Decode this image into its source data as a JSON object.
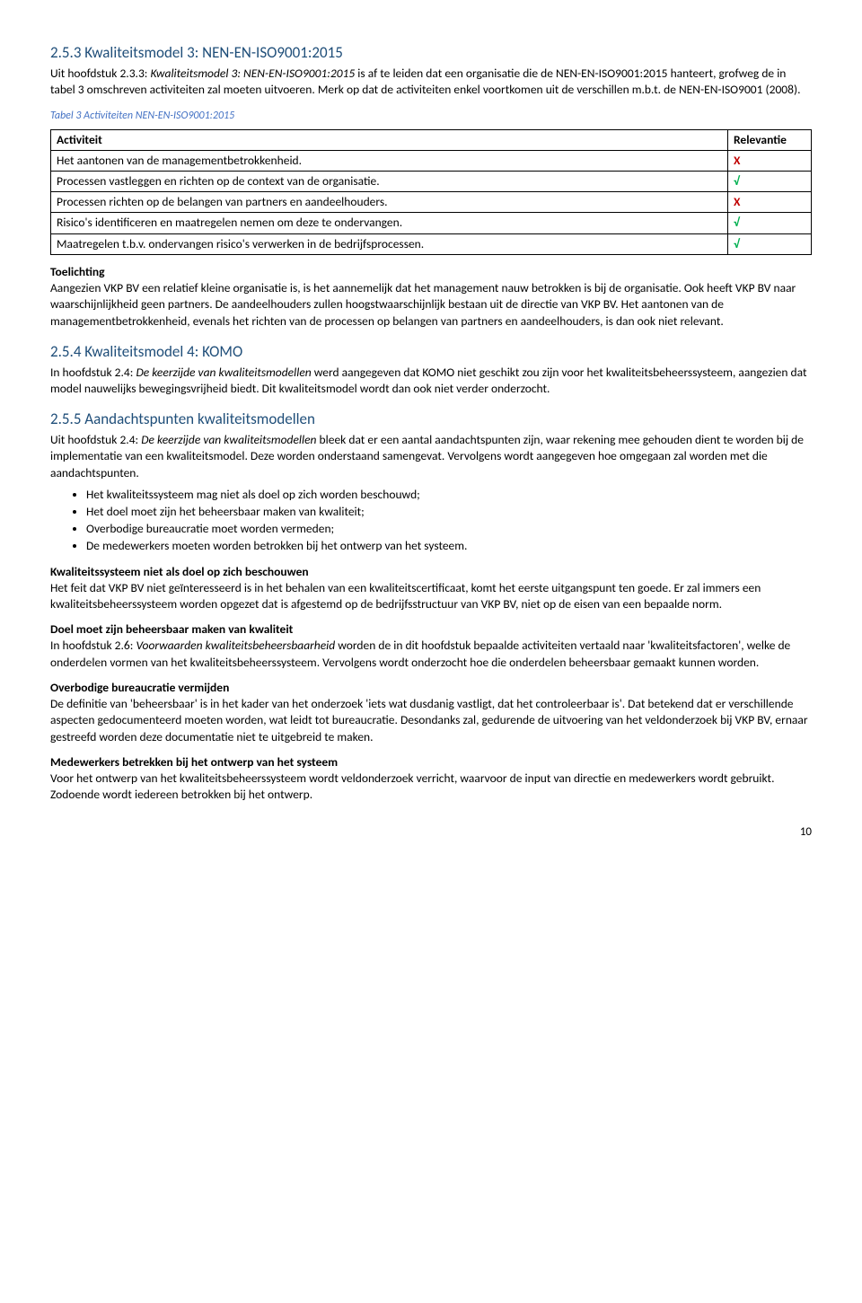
{
  "heading_253": "2.5.3 Kwaliteitsmodel 3: NEN-EN-ISO9001:2015",
  "intro_253_a": "Uit hoofdstuk 2.3.3: ",
  "intro_253_italic": "Kwaliteitsmodel 3: NEN-EN-ISO9001:2015",
  "intro_253_b": " is af te leiden dat een organisatie die de NEN-EN-ISO9001:2015 hanteert, grofweg de in tabel 3 omschreven activiteiten zal moeten uitvoeren. Merk op dat de activiteiten enkel voortkomen uit de verschillen m.b.t. de NEN-EN-ISO9001 (2008).",
  "table_caption": "Tabel 3 Activiteiten NEN-EN-ISO9001:2015",
  "col_activity": "Activiteit",
  "col_relevance": "Relevantie",
  "rows": [
    {
      "act": "Het aantonen van de managementbetrokkenheid.",
      "mark": "X",
      "cls": "x"
    },
    {
      "act": "Processen vastleggen en richten op de context van de organisatie.",
      "mark": "√",
      "cls": "v"
    },
    {
      "act": "Processen richten op de belangen van partners en aandeelhouders.",
      "mark": "X",
      "cls": "x"
    },
    {
      "act": "Risico's identificeren en maatregelen nemen om deze te ondervangen.",
      "mark": "√",
      "cls": "v"
    },
    {
      "act": "Maatregelen t.b.v. ondervangen risico's verwerken in de bedrijfsprocessen.",
      "mark": "√",
      "cls": "v"
    }
  ],
  "toelichting_title": "Toelichting",
  "toelichting_body": "Aangezien VKP BV een relatief kleine organisatie is, is het aannemelijk dat het management nauw betrokken is bij de organisatie. Ook heeft VKP BV naar waarschijnlijkheid geen partners. De aandeelhouders zullen hoogstwaarschijnlijk bestaan uit de directie van VKP BV. Het aantonen van de managementbetrokkenheid, evenals het richten van de processen op belangen van partners en aandeelhouders, is dan ook niet relevant.",
  "heading_254": "2.5.4 Kwaliteitsmodel 4: KOMO",
  "p254_a": "In hoofdstuk 2.4: ",
  "p254_italic": "De keerzijde van kwaliteitsmodellen",
  "p254_b": " werd aangegeven dat KOMO niet geschikt zou zijn voor het kwaliteitsbeheerssysteem, aangezien dat model nauwelijks bewegingsvrijheid biedt. Dit kwaliteitsmodel wordt dan ook niet verder onderzocht.",
  "heading_255": "2.5.5 Aandachtspunten kwaliteitsmodellen",
  "p255_a": "Uit hoofdstuk 2.4: ",
  "p255_italic": "De keerzijde van kwaliteitsmodellen",
  "p255_b": " bleek dat er een aantal aandachtspunten zijn, waar rekening mee gehouden dient te worden bij de implementatie van een kwaliteitsmodel. Deze worden onderstaand samengevat. Vervolgens wordt aangegeven hoe omgegaan zal worden met die aandachtspunten.",
  "bullets": [
    "Het kwaliteitssysteem mag niet als doel op zich worden beschouwd;",
    "Het doel moet zijn het beheersbaar maken van kwaliteit;",
    "Overbodige bureaucratie moet worden vermeden;",
    "De medewerkers moeten worden betrokken bij het ontwerp van het systeem."
  ],
  "sec1_title": "Kwaliteitssysteem niet als doel op zich beschouwen",
  "sec1_body": "Het feit dat VKP BV niet geïnteresseerd is in het behalen van een kwaliteitscertificaat, komt het eerste uitgangspunt ten goede. Er zal immers een kwaliteitsbeheerssysteem worden opgezet dat is afgestemd op de bedrijfsstructuur van VKP BV, niet op de eisen van een bepaalde norm.",
  "sec2_title": "Doel moet zijn beheersbaar maken van kwaliteit",
  "sec2_a": "In hoofdstuk 2.6: ",
  "sec2_italic": "Voorwaarden kwaliteitsbeheersbaarheid",
  "sec2_b": " worden de in dit hoofdstuk bepaalde activiteiten vertaald naar 'kwaliteitsfactoren', welke de onderdelen vormen van het kwaliteitsbeheerssysteem. Vervolgens wordt onderzocht hoe die onderdelen beheersbaar gemaakt kunnen worden.",
  "sec3_title": "Overbodige bureaucratie vermijden",
  "sec3_body": "De definitie van 'beheersbaar' is in het kader van het onderzoek 'iets wat dusdanig vastligt, dat het controleerbaar is'. Dat betekend dat er verschillende aspecten gedocumenteerd moeten worden, wat leidt tot bureaucratie. Desondanks zal, gedurende de uitvoering van het veldonderzoek bij VKP BV, ernaar gestreefd worden deze documentatie niet te uitgebreid te maken.",
  "sec4_title": "Medewerkers betrekken bij het ontwerp van het systeem",
  "sec4_body": "Voor het ontwerp van het kwaliteitsbeheerssysteem wordt veldonderzoek verricht, waarvoor de input van directie en medewerkers wordt gebruikt. Zodoende wordt iedereen betrokken bij het ontwerp.",
  "page_number": "10"
}
